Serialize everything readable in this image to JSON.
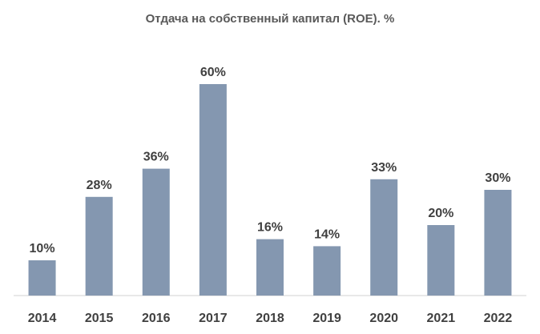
{
  "chart_data": {
    "type": "bar",
    "title": "Отдача на собственный капитал (ROE). %",
    "categories": [
      "2014",
      "2015",
      "2016",
      "2017",
      "2018",
      "2019",
      "2020",
      "2021",
      "2022"
    ],
    "values": [
      10,
      28,
      36,
      60,
      16,
      14,
      33,
      20,
      30
    ],
    "data_labels": [
      "10%",
      "28%",
      "36%",
      "60%",
      "16%",
      "14%",
      "33%",
      "20%",
      "30%"
    ],
    "ylim": [
      0,
      60
    ],
    "grid": false,
    "bar_color": "#8497b0"
  }
}
